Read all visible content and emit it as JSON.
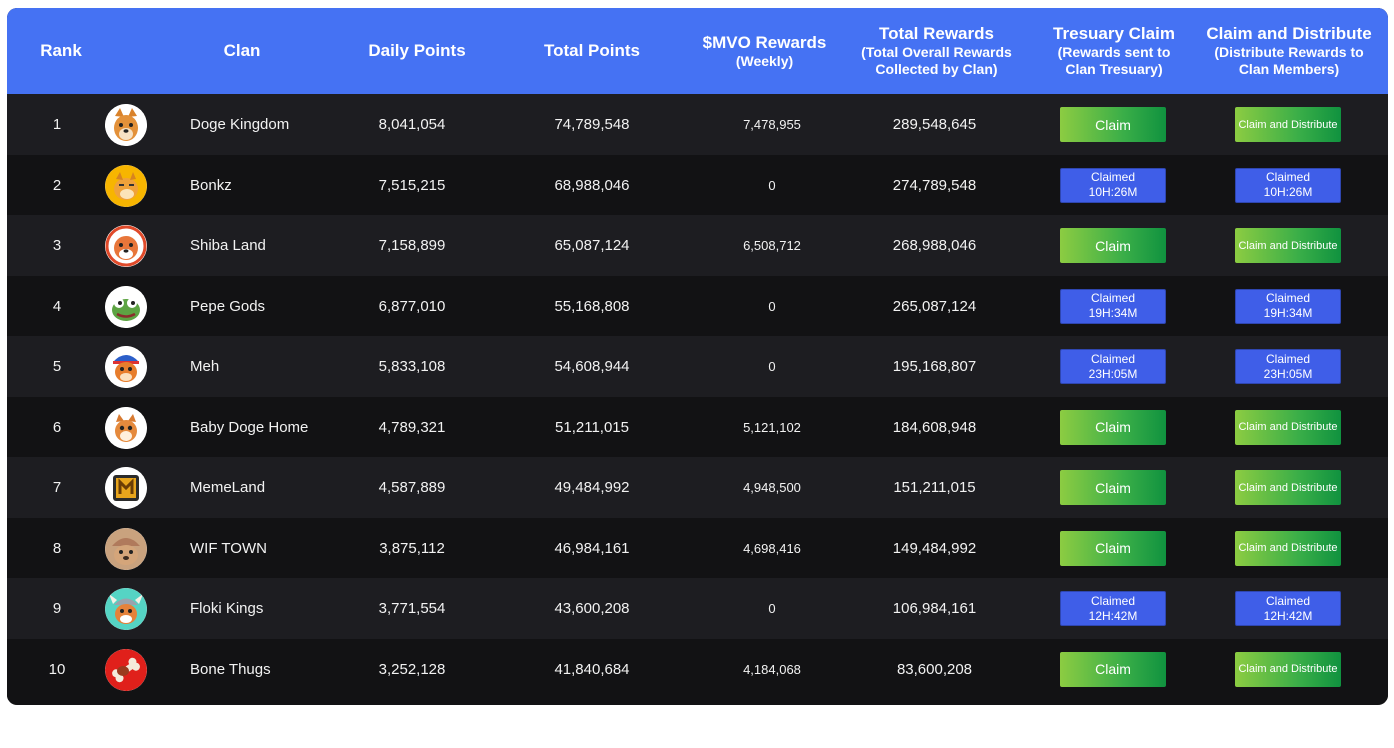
{
  "header": {
    "rank": "Rank",
    "clan": "Clan",
    "daily_points": "Daily Points",
    "total_points": "Total Points",
    "mvo_rewards": "$MVO Rewards",
    "mvo_rewards_sub": "(Weekly)",
    "total_rewards": "Total Rewards",
    "total_rewards_sub1": "(Total Overall Rewards",
    "total_rewards_sub2": "Collected by Clan)",
    "treasury_claim": "Tresuary Claim",
    "treasury_claim_sub1": "(Rewards sent to",
    "treasury_claim_sub2": "Clan Tresuary)",
    "claim_distribute": "Claim and Distribute",
    "claim_distribute_sub1": "(Distribute Rewards to",
    "claim_distribute_sub2": "Clan Members)"
  },
  "labels": {
    "claim": "Claim",
    "claim_and_distribute": "Claim and Distribute",
    "claimed": "Claimed"
  },
  "colors": {
    "header_bg": "#4572f3",
    "claim_green": "#3aae48",
    "claimed_blue": "#3f5ee8",
    "row_dark": "#121214",
    "row_alt": "#1d1d21"
  },
  "rows": [
    {
      "rank": "1",
      "clan": "Doge Kingdom",
      "avatar": "doge-avatar-icon",
      "daily": "8,041,054",
      "total": "74,789,548",
      "mvo": "7,478,955",
      "rewards": "289,548,645",
      "status": "claim",
      "timer": ""
    },
    {
      "rank": "2",
      "clan": "Bonkz",
      "avatar": "bonk-avatar-icon",
      "daily": "7,515,215",
      "total": "68,988,046",
      "mvo": "0",
      "rewards": "274,789,548",
      "status": "claimed",
      "timer": "10H:26M"
    },
    {
      "rank": "3",
      "clan": "Shiba Land",
      "avatar": "shiba-avatar-icon",
      "daily": "7,158,899",
      "total": "65,087,124",
      "mvo": "6,508,712",
      "rewards": "268,988,046",
      "status": "claim",
      "timer": ""
    },
    {
      "rank": "4",
      "clan": "Pepe Gods",
      "avatar": "pepe-avatar-icon",
      "daily": "6,877,010",
      "total": "55,168,808",
      "mvo": "0",
      "rewards": "265,087,124",
      "status": "claimed",
      "timer": "19H:34M"
    },
    {
      "rank": "5",
      "clan": "Meh",
      "avatar": "meh-avatar-icon",
      "daily": "5,833,108",
      "total": "54,608,944",
      "mvo": "0",
      "rewards": "195,168,807",
      "status": "claimed",
      "timer": "23H:05M"
    },
    {
      "rank": "6",
      "clan": "Baby Doge Home",
      "avatar": "baby-doge-avatar-icon",
      "daily": "4,789,321",
      "total": "51,211,015",
      "mvo": "5,121,102",
      "rewards": "184,608,948",
      "status": "claim",
      "timer": ""
    },
    {
      "rank": "7",
      "clan": "MemeLand",
      "avatar": "memeland-coin-icon",
      "daily": "4,587,889",
      "total": "49,484,992",
      "mvo": "4,948,500",
      "rewards": "151,211,015",
      "status": "claim",
      "timer": ""
    },
    {
      "rank": "8",
      "clan": "WIF TOWN",
      "avatar": "wif-avatar-icon",
      "daily": "3,875,112",
      "total": "46,984,161",
      "mvo": "4,698,416",
      "rewards": "149,484,992",
      "status": "claim",
      "timer": ""
    },
    {
      "rank": "9",
      "clan": "Floki Kings",
      "avatar": "floki-avatar-icon",
      "daily": "3,771,554",
      "total": "43,600,208",
      "mvo": "0",
      "rewards": "106,984,161",
      "status": "claimed",
      "timer": "12H:42M"
    },
    {
      "rank": "10",
      "clan": "Bone Thugs",
      "avatar": "bone-avatar-icon",
      "daily": "3,252,128",
      "total": "41,840,684",
      "mvo": "4,184,068",
      "rewards": "83,600,208",
      "status": "claim",
      "timer": ""
    }
  ]
}
